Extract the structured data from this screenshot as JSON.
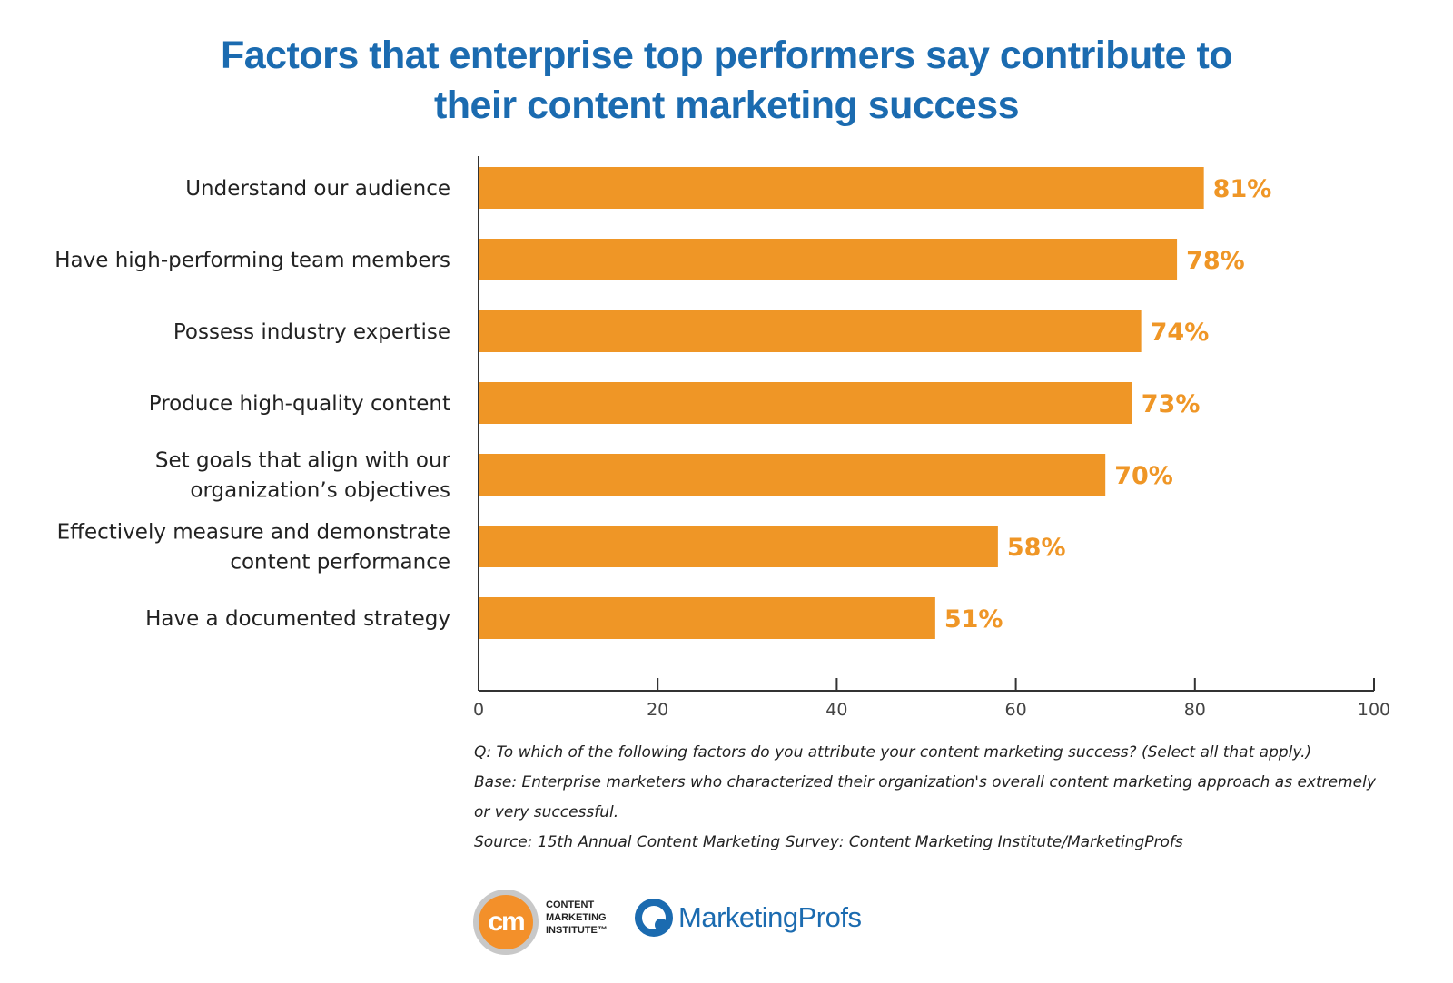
{
  "title_lines": [
    "Factors that enterprise top performers say contribute to",
    "their content marketing success"
  ],
  "colors": {
    "title": "#1b6bb0",
    "bar": "#ef9626",
    "value_label": "#ef9626",
    "axis": "#333333"
  },
  "chart_data": {
    "type": "bar",
    "orientation": "horizontal",
    "categories": [
      [
        "Understand our audience"
      ],
      [
        "Have high-performing team members"
      ],
      [
        "Possess industry expertise"
      ],
      [
        "Produce high-quality content"
      ],
      [
        "Set goals that align with our",
        "organization’s objectives"
      ],
      [
        "Effectively measure and demonstrate",
        "content performance"
      ],
      [
        "Have a documented strategy"
      ]
    ],
    "values": [
      81,
      78,
      74,
      73,
      70,
      58,
      51
    ],
    "value_labels": [
      "81%",
      "78%",
      "74%",
      "73%",
      "70%",
      "58%",
      "51%"
    ],
    "xlim": [
      0,
      100
    ],
    "xticks": [
      0,
      20,
      40,
      60,
      80,
      100
    ],
    "grid": false,
    "legend": "none"
  },
  "notes": [
    "Q: To which of the following factors do you attribute your content marketing success? (Select all that apply.)",
    "Base: Enterprise marketers who characterized their organization's overall content marketing approach as extremely",
    "or very successful.",
    "Source: 15th Annual Content Marketing Survey: Content Marketing Institute/MarketingProfs"
  ],
  "logos": {
    "cmi_mark": "cm",
    "cmi_lines": [
      "CONTENT",
      "MARKETING",
      "INSTITUTE™"
    ],
    "marketingprofs": "MarketingProfs"
  }
}
